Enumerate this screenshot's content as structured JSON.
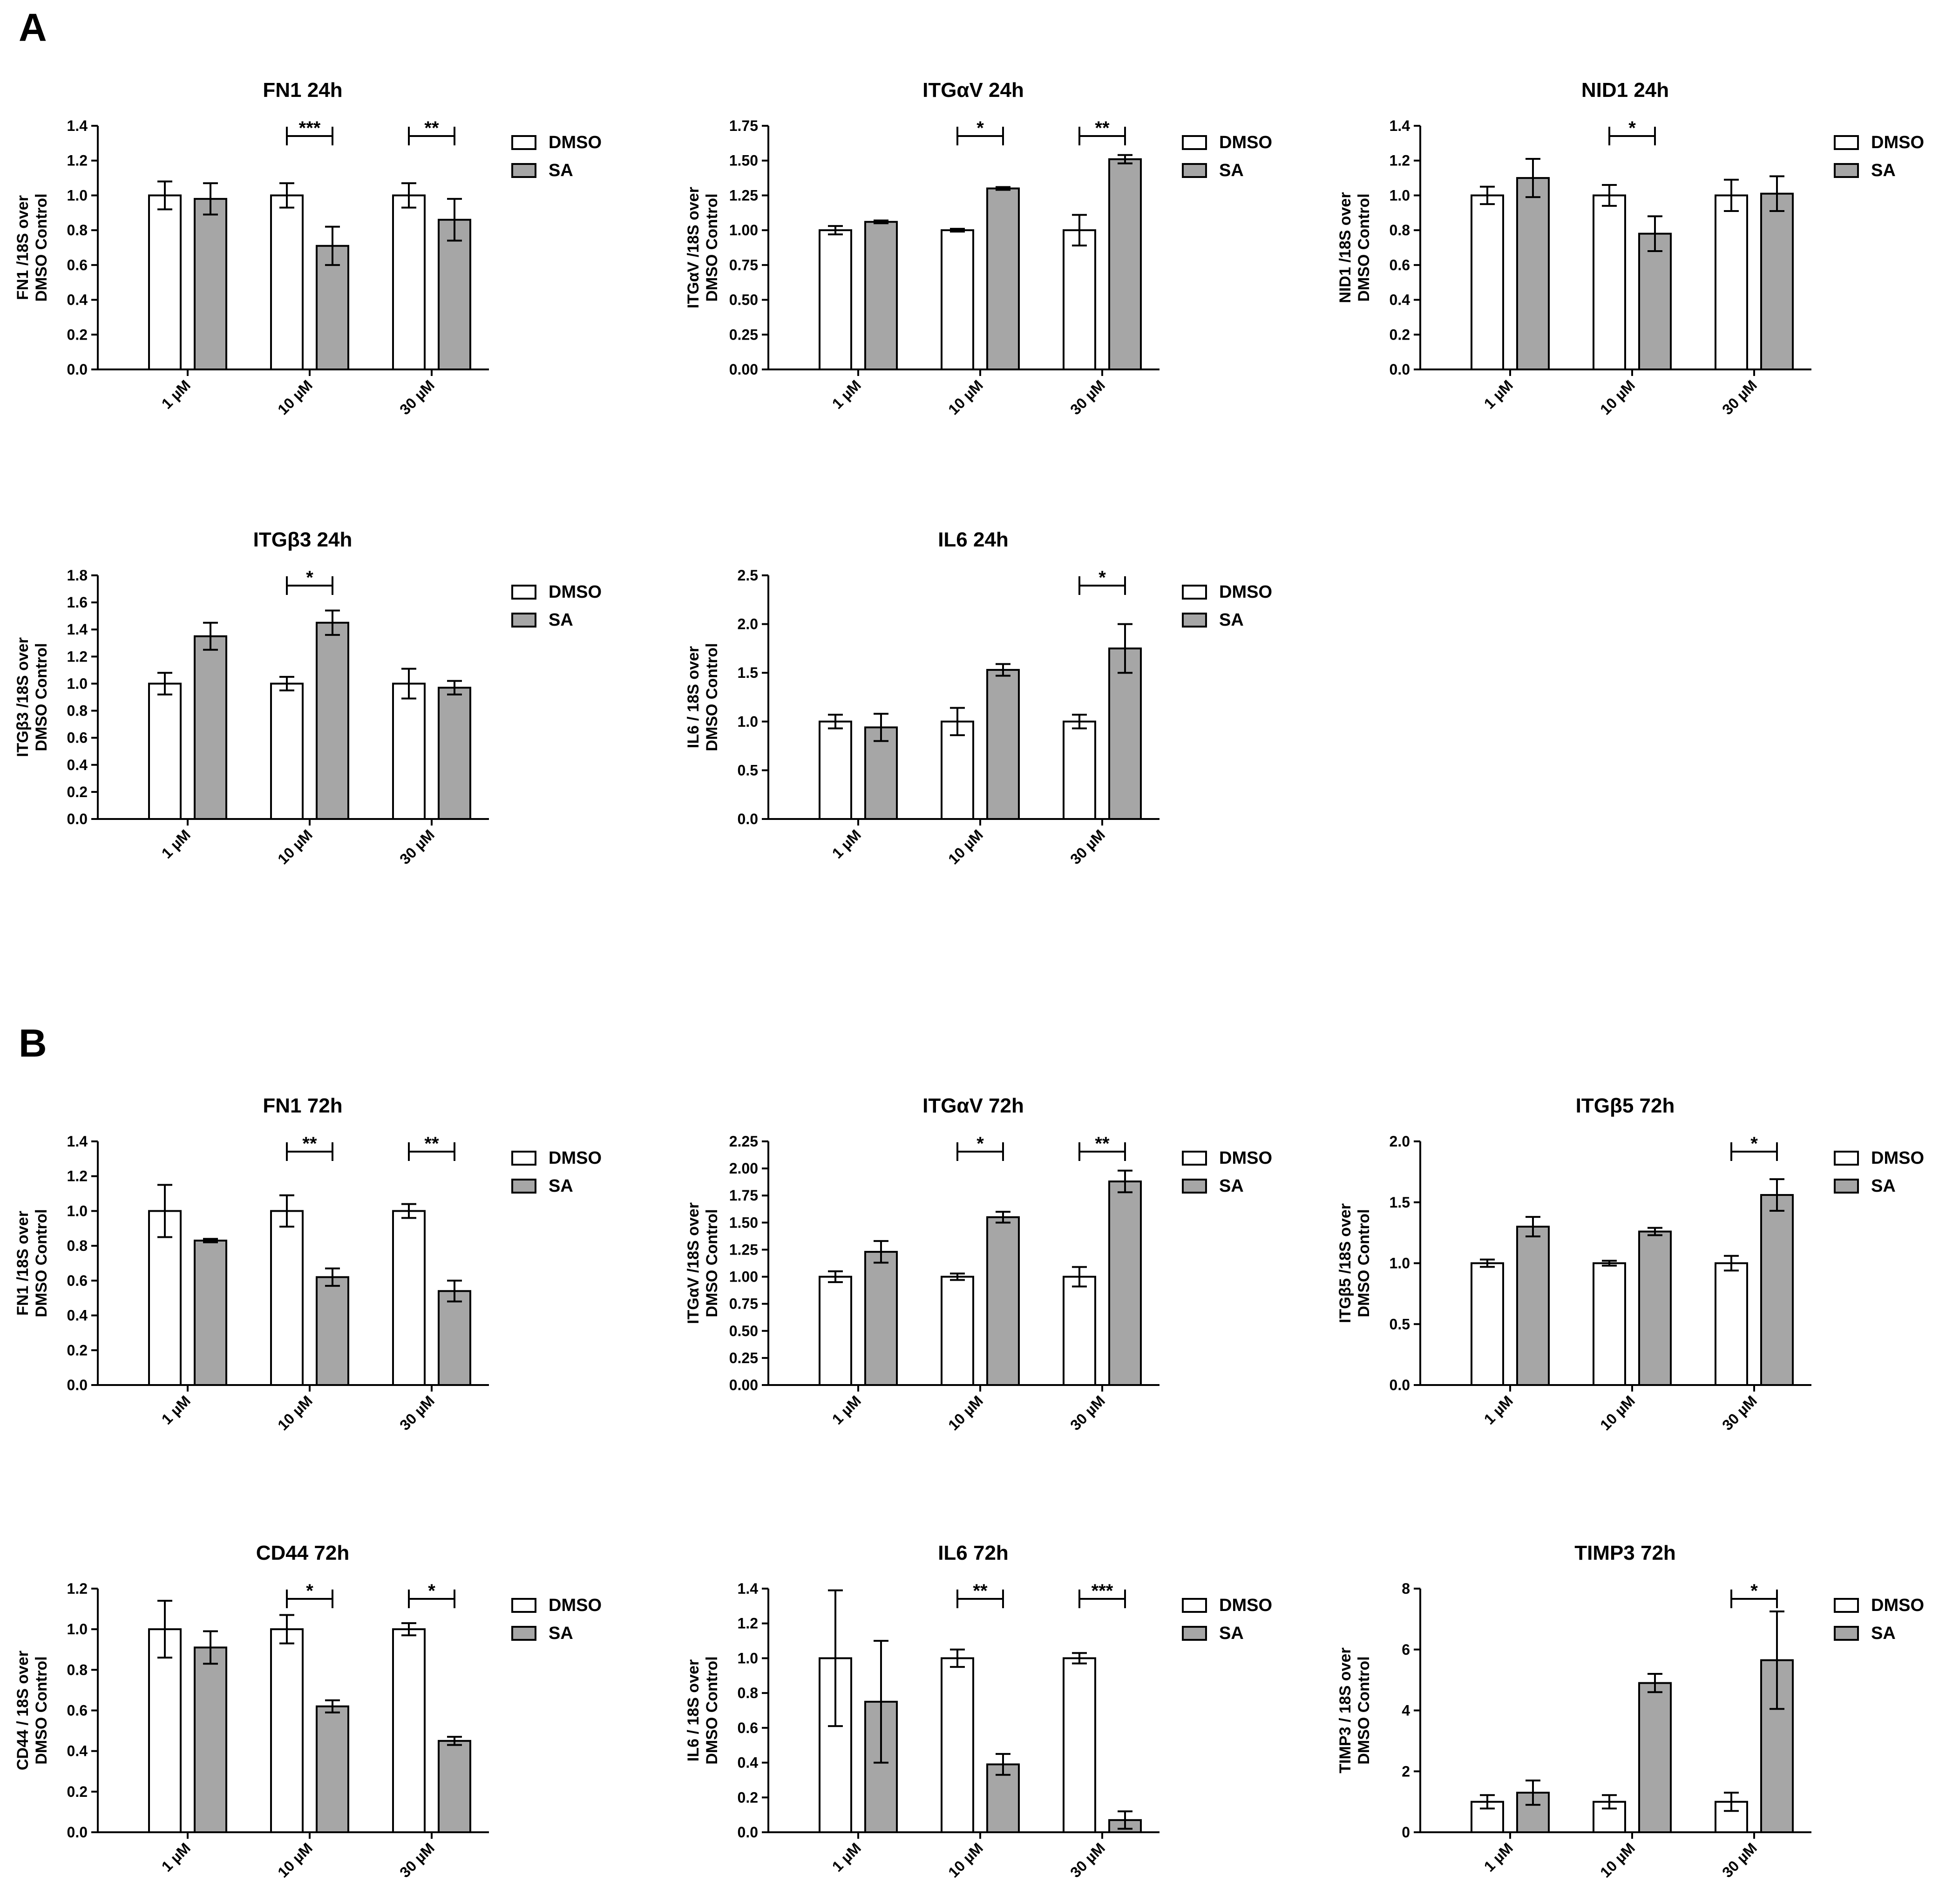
{
  "figure": {
    "panel_labels": [
      "A",
      "B"
    ],
    "legend": {
      "dmso": "DMSO",
      "sa": "SA"
    },
    "categories": [
      "1 µM",
      "10 µM",
      "30 µM"
    ],
    "colors": {
      "dmso_fill": "#ffffff",
      "sa_fill": "#a6a6a6",
      "stroke": "#000000"
    }
  },
  "chart_data": [
    {
      "type": "bar",
      "panel": "A",
      "title_gene": "FN1",
      "title_time": "24h",
      "ylabel": [
        "FN1 /18S over",
        "DMSO Control"
      ],
      "ylim": [
        0,
        1.4
      ],
      "yticks": [
        "0.0",
        "0.2",
        "0.4",
        "0.6",
        "0.8",
        "1.0",
        "1.2",
        "1.4"
      ],
      "categories": [
        "1 µM",
        "10 µM",
        "30 µM"
      ],
      "series": [
        {
          "name": "DMSO",
          "values": [
            1.0,
            1.0,
            1.0
          ],
          "errors": [
            0.08,
            0.07,
            0.07
          ]
        },
        {
          "name": "SA",
          "values": [
            0.98,
            0.71,
            0.86
          ],
          "errors": [
            0.09,
            0.11,
            0.12
          ]
        }
      ],
      "significance": [
        {
          "category": 1,
          "label": "***"
        },
        {
          "category": 2,
          "label": "**"
        }
      ]
    },
    {
      "type": "bar",
      "panel": "A",
      "title_gene": "ITGαV",
      "title_time": "24h",
      "ylabel": [
        "ITGαV /18S over",
        "DMSO Control"
      ],
      "ylim": [
        0,
        1.75
      ],
      "yticks": [
        "0.00",
        "0.25",
        "0.50",
        "0.75",
        "1.00",
        "1.25",
        "1.50",
        "1.75"
      ],
      "categories": [
        "1 µM",
        "10 µM",
        "30 µM"
      ],
      "series": [
        {
          "name": "DMSO",
          "values": [
            1.0,
            1.0,
            1.0
          ],
          "errors": [
            0.03,
            0.01,
            0.11
          ]
        },
        {
          "name": "SA",
          "values": [
            1.06,
            1.3,
            1.51
          ],
          "errors": [
            0.01,
            0.01,
            0.03
          ]
        }
      ],
      "significance": [
        {
          "category": 1,
          "label": "*"
        },
        {
          "category": 2,
          "label": "**"
        }
      ]
    },
    {
      "type": "bar",
      "panel": "A",
      "title_gene": "NID1",
      "title_time": "24h",
      "ylabel": [
        "NID1 /18S over",
        "DMSO Control"
      ],
      "ylim": [
        0,
        1.4
      ],
      "yticks": [
        "0.0",
        "0.2",
        "0.4",
        "0.6",
        "0.8",
        "1.0",
        "1.2",
        "1.4"
      ],
      "categories": [
        "1 µM",
        "10 µM",
        "30 µM"
      ],
      "series": [
        {
          "name": "DMSO",
          "values": [
            1.0,
            1.0,
            1.0
          ],
          "errors": [
            0.05,
            0.06,
            0.09
          ]
        },
        {
          "name": "SA",
          "values": [
            1.1,
            0.78,
            1.01
          ],
          "errors": [
            0.11,
            0.1,
            0.1
          ]
        }
      ],
      "significance": [
        {
          "category": 1,
          "label": "*"
        }
      ]
    },
    {
      "type": "bar",
      "panel": "A",
      "title_gene": "ITGβ3",
      "title_time": "24h",
      "ylabel": [
        "ITGβ3 /18S over",
        "DMSO Control"
      ],
      "ylim": [
        0,
        1.8
      ],
      "yticks": [
        "0.0",
        "0.2",
        "0.4",
        "0.6",
        "0.8",
        "1.0",
        "1.2",
        "1.4",
        "1.6",
        "1.8"
      ],
      "categories": [
        "1 µM",
        "10 µM",
        "30 µM"
      ],
      "series": [
        {
          "name": "DMSO",
          "values": [
            1.0,
            1.0,
            1.0
          ],
          "errors": [
            0.08,
            0.05,
            0.11
          ]
        },
        {
          "name": "SA",
          "values": [
            1.35,
            1.45,
            0.97
          ],
          "errors": [
            0.1,
            0.09,
            0.05
          ]
        }
      ],
      "significance": [
        {
          "category": 1,
          "label": "*"
        }
      ]
    },
    {
      "type": "bar",
      "panel": "A",
      "title_gene": "IL6",
      "title_time": "24h",
      "ylabel": [
        "IL6 / 18S over",
        "DMSO Control"
      ],
      "ylim": [
        0,
        2.5
      ],
      "yticks": [
        "0.0",
        "0.5",
        "1.0",
        "1.5",
        "2.0",
        "2.5"
      ],
      "categories": [
        "1 µM",
        "10 µM",
        "30 µM"
      ],
      "series": [
        {
          "name": "DMSO",
          "values": [
            1.0,
            1.0,
            1.0
          ],
          "errors": [
            0.07,
            0.14,
            0.07
          ]
        },
        {
          "name": "SA",
          "values": [
            0.94,
            1.53,
            1.75
          ],
          "errors": [
            0.14,
            0.06,
            0.25
          ]
        }
      ],
      "significance": [
        {
          "category": 2,
          "label": "*"
        }
      ]
    },
    {
      "type": "bar",
      "panel": "B",
      "title_gene": "FN1",
      "title_time": "72h",
      "ylabel": [
        "FN1 /18S over",
        "DMSO Control"
      ],
      "ylim": [
        0,
        1.4
      ],
      "yticks": [
        "0.0",
        "0.2",
        "0.4",
        "0.6",
        "0.8",
        "1.0",
        "1.2",
        "1.4"
      ],
      "categories": [
        "1 µM",
        "10 µM",
        "30 µM"
      ],
      "series": [
        {
          "name": "DMSO",
          "values": [
            1.0,
            1.0,
            1.0
          ],
          "errors": [
            0.15,
            0.09,
            0.04
          ]
        },
        {
          "name": "SA",
          "values": [
            0.83,
            0.62,
            0.54
          ],
          "errors": [
            0.01,
            0.05,
            0.06
          ]
        }
      ],
      "significance": [
        {
          "category": 1,
          "label": "**"
        },
        {
          "category": 2,
          "label": "**"
        }
      ]
    },
    {
      "type": "bar",
      "panel": "B",
      "title_gene": "ITGαV",
      "title_time": "72h",
      "ylabel": [
        "ITGαV /18S over",
        "DMSO Control"
      ],
      "ylim": [
        0,
        2.25
      ],
      "yticks": [
        "0.00",
        "0.25",
        "0.50",
        "0.75",
        "1.00",
        "1.25",
        "1.50",
        "1.75",
        "2.00",
        "2.25"
      ],
      "categories": [
        "1 µM",
        "10 µM",
        "30 µM"
      ],
      "series": [
        {
          "name": "DMSO",
          "values": [
            1.0,
            1.0,
            1.0
          ],
          "errors": [
            0.05,
            0.03,
            0.09
          ]
        },
        {
          "name": "SA",
          "values": [
            1.23,
            1.55,
            1.88
          ],
          "errors": [
            0.1,
            0.05,
            0.1
          ]
        }
      ],
      "significance": [
        {
          "category": 1,
          "label": "*"
        },
        {
          "category": 2,
          "label": "**"
        }
      ]
    },
    {
      "type": "bar",
      "panel": "B",
      "title_gene": "ITGβ5",
      "title_time": "72h",
      "ylabel": [
        "ITGβ5 /18S over",
        "DMSO Control"
      ],
      "ylim": [
        0,
        2.0
      ],
      "yticks": [
        "0.0",
        "0.5",
        "1.0",
        "1.5",
        "2.0"
      ],
      "categories": [
        "1 µM",
        "10 µM",
        "30 µM"
      ],
      "series": [
        {
          "name": "DMSO",
          "values": [
            1.0,
            1.0,
            1.0
          ],
          "errors": [
            0.03,
            0.02,
            0.06
          ]
        },
        {
          "name": "SA",
          "values": [
            1.3,
            1.26,
            1.56
          ],
          "errors": [
            0.08,
            0.03,
            0.13
          ]
        }
      ],
      "significance": [
        {
          "category": 2,
          "label": "*"
        }
      ]
    },
    {
      "type": "bar",
      "panel": "B",
      "title_gene": "CD44",
      "title_time": "72h",
      "ylabel": [
        "CD44 / 18S  over",
        "DMSO Control"
      ],
      "ylim": [
        0,
        1.2
      ],
      "yticks": [
        "0.0",
        "0.2",
        "0.4",
        "0.6",
        "0.8",
        "1.0",
        "1.2"
      ],
      "categories": [
        "1 µM",
        "10 µM",
        "30 µM"
      ],
      "series": [
        {
          "name": "DMSO",
          "values": [
            1.0,
            1.0,
            1.0
          ],
          "errors": [
            0.14,
            0.07,
            0.03
          ]
        },
        {
          "name": "SA",
          "values": [
            0.91,
            0.62,
            0.45
          ],
          "errors": [
            0.08,
            0.03,
            0.02
          ]
        }
      ],
      "significance": [
        {
          "category": 1,
          "label": "*"
        },
        {
          "category": 2,
          "label": "*"
        }
      ]
    },
    {
      "type": "bar",
      "panel": "B",
      "title_gene": "IL6",
      "title_time": "72h",
      "ylabel": [
        "IL6 / 18S  over",
        "DMSO Control"
      ],
      "ylim": [
        0,
        1.4
      ],
      "yticks": [
        "0.0",
        "0.2",
        "0.4",
        "0.6",
        "0.8",
        "1.0",
        "1.2",
        "1.4"
      ],
      "categories": [
        "1 µM",
        "10 µM",
        "30 µM"
      ],
      "series": [
        {
          "name": "DMSO",
          "values": [
            1.0,
            1.0,
            1.0
          ],
          "errors": [
            0.39,
            0.05,
            0.03
          ]
        },
        {
          "name": "SA",
          "values": [
            0.75,
            0.39,
            0.07
          ],
          "errors": [
            0.35,
            0.06,
            0.05
          ]
        }
      ],
      "significance": [
        {
          "category": 1,
          "label": "**"
        },
        {
          "category": 2,
          "label": "***"
        }
      ]
    },
    {
      "type": "bar",
      "panel": "B",
      "title_gene": "TIMP3",
      "title_time": "72h",
      "ylabel": [
        "TIMP3 / 18S  over",
        "DMSO Control"
      ],
      "ylim": [
        0,
        8
      ],
      "yticks": [
        "0",
        "2",
        "4",
        "6",
        "8"
      ],
      "categories": [
        "1 µM",
        "10 µM",
        "30 µM"
      ],
      "series": [
        {
          "name": "DMSO",
          "values": [
            1.0,
            1.0,
            1.0
          ],
          "errors": [
            0.22,
            0.22,
            0.3
          ]
        },
        {
          "name": "SA",
          "values": [
            1.3,
            4.9,
            5.65
          ],
          "errors": [
            0.4,
            0.3,
            1.6
          ]
        }
      ],
      "significance": [
        {
          "category": 2,
          "label": "*"
        }
      ]
    }
  ]
}
